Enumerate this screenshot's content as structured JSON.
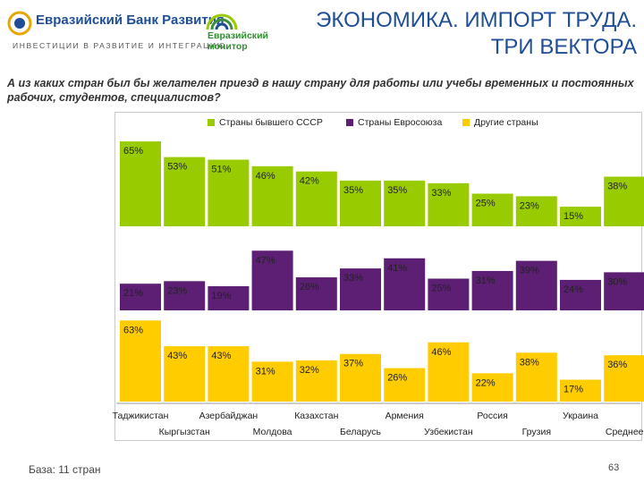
{
  "header": {
    "bank_name": "Евразийский Банк Развития",
    "bank_tagline": "ИНВЕСТИЦИИ В РАЗВИТИЕ И ИНТЕГРАЦИЮ",
    "monitor_line1": "Евразийский",
    "monitor_line2": "монитор",
    "title_line1": "ЭКОНОМИКА. ИМПОРТ ТРУДА.",
    "title_line2": "ТРИ ВЕКТОРА",
    "brand_color": "#1f4e96",
    "monitor_color": "#2f8f2f"
  },
  "question": "А из каких стран был бы желателен приезд в нашу страну для работы или учебы временных и постоянных рабочих, студентов, специалистов?",
  "legend": [
    {
      "label": "Страны бывшего СССР",
      "color": "#99cc00"
    },
    {
      "label": "Страны Евросоюза",
      "color": "#5c1f73"
    },
    {
      "label": "Другие страны",
      "color": "#ffcc00"
    }
  ],
  "chart_data": {
    "type": "bar",
    "title": "",
    "xlabel": "",
    "ylabel": "",
    "ylim": [
      0,
      100
    ],
    "value_suffix": "%",
    "categories": [
      "Таджикистан",
      "Кыргызстан",
      "Азербайджан",
      "Молдова",
      "Казахстан",
      "Беларусь",
      "Армения",
      "Узбекистан",
      "Россия",
      "Грузия",
      "Украина",
      "Среднее"
    ],
    "series": [
      {
        "name": "Страны бывшего СССР",
        "color": "#99cc00",
        "values": [
          65,
          53,
          51,
          46,
          42,
          35,
          35,
          33,
          25,
          23,
          15,
          38
        ]
      },
      {
        "name": "Страны Евросоюза",
        "color": "#5c1f73",
        "values": [
          21,
          23,
          19,
          47,
          26,
          33,
          41,
          25,
          31,
          39,
          24,
          30
        ]
      },
      {
        "name": "Другие страны",
        "color": "#ffcc00",
        "values": [
          63,
          43,
          43,
          31,
          32,
          37,
          26,
          46,
          22,
          38,
          17,
          36
        ]
      }
    ]
  },
  "footer": {
    "base_note": "База: 11 стран",
    "page_number": "63"
  }
}
